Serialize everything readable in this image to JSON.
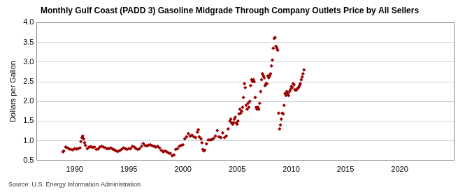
{
  "chart_data": {
    "type": "scatter",
    "title": "Monthly Gulf Coast (PADD 3) Gasoline Midgrade Through Company Outlets Price by All Sellers",
    "y_label": "Dollars per Gallon",
    "source": "Source: U.S. Energy Information Administration",
    "color": "#990000",
    "marker": "diamond",
    "grid": true,
    "xlim": [
      1986.5,
      2025
    ],
    "xticks": [
      1990,
      1995,
      2000,
      2005,
      2010,
      2015,
      2020
    ],
    "ylim": [
      0.5,
      4.0
    ],
    "yticks": [
      0.5,
      {
        "value": 1,
        "label": "1.0"
      },
      1.5,
      {
        "value": 2,
        "label": "2.0"
      },
      2.5,
      {
        "value": 3,
        "label": "3.0"
      },
      3.5,
      {
        "value": 4,
        "label": "4.0"
      }
    ],
    "x": [
      1988.92,
      1989.0,
      1989.17,
      1989.33,
      1989.5,
      1989.67,
      1989.83,
      1990.0,
      1990.17,
      1990.33,
      1990.5,
      1990.58,
      1990.67,
      1990.75,
      1990.83,
      1990.92,
      1991.0,
      1991.17,
      1991.33,
      1991.5,
      1991.67,
      1991.83,
      1992.0,
      1992.17,
      1992.33,
      1992.5,
      1992.67,
      1992.83,
      1993.0,
      1993.17,
      1993.33,
      1993.5,
      1993.67,
      1993.83,
      1994.0,
      1994.17,
      1994.33,
      1994.5,
      1994.67,
      1994.83,
      1995.0,
      1995.17,
      1995.33,
      1995.5,
      1995.67,
      1995.83,
      1996.0,
      1996.17,
      1996.33,
      1996.5,
      1996.67,
      1996.83,
      1997.0,
      1997.17,
      1997.33,
      1997.5,
      1997.67,
      1997.83,
      1998.0,
      1998.17,
      1998.33,
      1998.5,
      1998.67,
      1998.83,
      1999.0,
      1999.17,
      1999.33,
      1999.5,
      1999.67,
      1999.83,
      2000.0,
      2000.17,
      2000.33,
      2000.5,
      2000.67,
      2000.83,
      2001.0,
      2001.17,
      2001.33,
      2001.42,
      2001.5,
      2001.67,
      2001.75,
      2001.83,
      2001.92,
      2002.0,
      2002.17,
      2002.33,
      2002.5,
      2002.67,
      2002.83,
      2003.0,
      2003.17,
      2003.33,
      2003.5,
      2003.67,
      2003.83,
      2004.0,
      2004.17,
      2004.33,
      2004.42,
      2004.5,
      2004.58,
      2004.67,
      2004.75,
      2004.83,
      2004.92,
      2005.0,
      2005.08,
      2005.17,
      2005.25,
      2005.33,
      2005.42,
      2005.5,
      2005.58,
      2005.67,
      2005.75,
      2005.83,
      2005.92,
      2006.0,
      2006.08,
      2006.17,
      2006.25,
      2006.33,
      2006.42,
      2006.5,
      2006.58,
      2006.67,
      2006.75,
      2006.83,
      2006.92,
      2007.0,
      2007.08,
      2007.17,
      2007.25,
      2007.33,
      2007.42,
      2007.5,
      2007.58,
      2007.67,
      2007.75,
      2007.83,
      2007.92,
      2008.0,
      2008.08,
      2008.17,
      2008.25,
      2008.33,
      2008.42,
      2008.5,
      2008.58,
      2008.67,
      2008.75,
      2008.83,
      2008.92,
      2009.0,
      2009.08,
      2009.17,
      2009.25,
      2009.33,
      2009.42,
      2009.5,
      2009.58,
      2009.67,
      2009.75,
      2009.83,
      2009.92,
      2010.0,
      2010.08,
      2010.17,
      2010.25,
      2010.33,
      2010.42,
      2010.5,
      2010.58,
      2010.67,
      2010.75,
      2010.83,
      2010.92,
      2011.0,
      2011.08,
      2011.17
    ],
    "values": [
      0.72,
      0.74,
      0.84,
      0.82,
      0.79,
      0.78,
      0.77,
      0.8,
      0.79,
      0.8,
      0.82,
      0.98,
      1.08,
      1.12,
      1.05,
      0.95,
      0.88,
      0.8,
      0.84,
      0.85,
      0.83,
      0.84,
      0.78,
      0.79,
      0.84,
      0.86,
      0.84,
      0.82,
      0.8,
      0.8,
      0.82,
      0.79,
      0.77,
      0.74,
      0.73,
      0.75,
      0.78,
      0.82,
      0.8,
      0.78,
      0.8,
      0.8,
      0.86,
      0.84,
      0.8,
      0.78,
      0.8,
      0.86,
      0.93,
      0.88,
      0.87,
      0.89,
      0.9,
      0.87,
      0.86,
      0.84,
      0.86,
      0.82,
      0.76,
      0.72,
      0.74,
      0.72,
      0.69,
      0.68,
      0.62,
      0.64,
      0.78,
      0.8,
      0.86,
      0.88,
      0.9,
      1.05,
      1.1,
      1.18,
      1.12,
      1.14,
      1.1,
      1.08,
      1.22,
      1.28,
      1.1,
      1.05,
      0.95,
      0.78,
      0.74,
      0.76,
      0.92,
      1.02,
      1.02,
      1.03,
      1.06,
      1.12,
      1.26,
      1.1,
      1.08,
      1.2,
      1.08,
      1.12,
      1.3,
      1.5,
      1.55,
      1.45,
      1.42,
      1.46,
      1.55,
      1.6,
      1.45,
      1.42,
      1.5,
      1.68,
      1.8,
      1.7,
      1.75,
      1.85,
      2.1,
      2.45,
      2.35,
      1.9,
      1.8,
      1.95,
      1.85,
      2.0,
      2.4,
      2.55,
      2.5,
      2.55,
      2.5,
      2.1,
      1.85,
      1.8,
      1.85,
      1.8,
      1.95,
      2.25,
      2.55,
      2.7,
      2.65,
      2.6,
      2.4,
      2.45,
      2.45,
      2.65,
      2.6,
      2.65,
      2.7,
      2.9,
      3.05,
      3.35,
      3.6,
      3.62,
      3.4,
      3.35,
      3.3,
      1.7,
      1.3,
      1.4,
      1.55,
      1.7,
      1.68,
      1.9,
      2.2,
      2.15,
      2.25,
      2.2,
      2.15,
      2.25,
      2.3,
      2.38,
      2.35,
      2.45,
      2.42,
      2.3,
      2.28,
      2.3,
      2.33,
      2.35,
      2.4,
      2.45,
      2.55,
      2.62,
      2.7,
      2.8
    ]
  }
}
